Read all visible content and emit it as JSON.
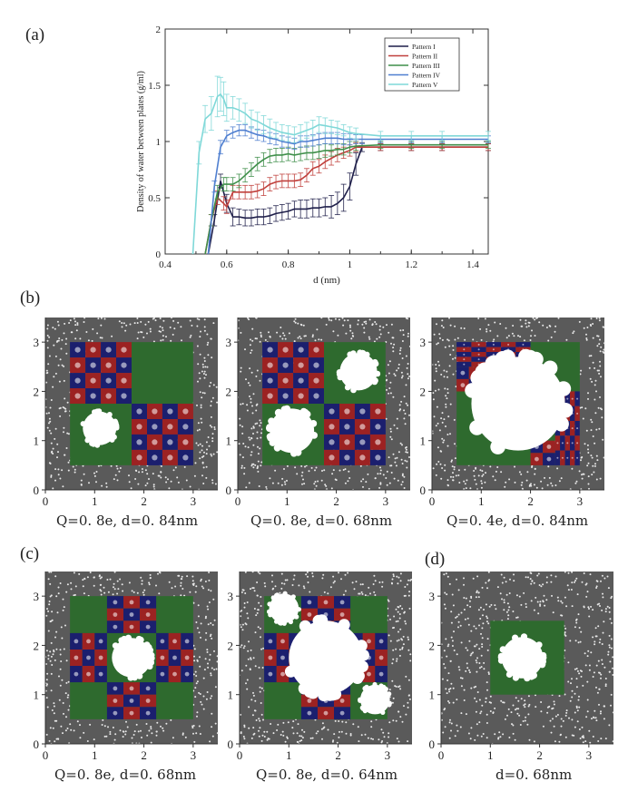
{
  "panel_labels": [
    "(a)",
    "(b)",
    "(c)",
    "(d)"
  ],
  "colors": {
    "pattern1": "#1f1f4a",
    "pattern2": "#c0403c",
    "pattern3": "#3f8f4a",
    "pattern4": "#4f7fd0",
    "pattern5": "#7fd8d8",
    "negative": "#1b1f6e",
    "positive": "#9c2222",
    "neutral": "#2e6a2e",
    "water_bg": "#5a5a5a",
    "water_dot": "#e8e8e8"
  },
  "chart_data": [
    {
      "type": "line",
      "ylabel": "Density of water between plates (g/ml)",
      "xlabel": "d (nm)",
      "xlim": [
        0.4,
        1.45
      ],
      "ylim": [
        0,
        2
      ],
      "xticks": [
        "0.4",
        "0.6",
        "0.8",
        "1",
        "1.2",
        "1.4"
      ],
      "xtick_values": [
        0.4,
        0.6,
        0.8,
        1.0,
        1.2,
        1.4
      ],
      "yticks": [
        "0",
        "0.5",
        "1",
        "1.5",
        "2"
      ],
      "ytick_values": [
        0,
        0.5,
        1.0,
        1.5,
        2.0
      ],
      "legend_position": "top-right",
      "series": [
        {
          "name": "Pattern I",
          "color_key": "pattern1",
          "x": [
            0.54,
            0.56,
            0.58,
            0.6,
            0.62,
            0.64,
            0.66,
            0.68,
            0.7,
            0.72,
            0.74,
            0.76,
            0.78,
            0.8,
            0.82,
            0.84,
            0.86,
            0.88,
            0.9,
            0.92,
            0.94,
            0.96,
            0.98,
            1.0,
            1.02,
            1.04,
            1.1,
            1.2,
            1.3,
            1.45
          ],
          "y": [
            0.0,
            0.3,
            0.65,
            0.45,
            0.33,
            0.33,
            0.32,
            0.32,
            0.33,
            0.33,
            0.34,
            0.36,
            0.37,
            0.38,
            0.4,
            0.4,
            0.4,
            0.41,
            0.41,
            0.42,
            0.42,
            0.45,
            0.5,
            0.6,
            0.8,
            0.95,
            0.95,
            0.95,
            0.95,
            0.95
          ],
          "err": [
            0,
            0.05,
            0.06,
            0.08,
            0.08,
            0.07,
            0.07,
            0.07,
            0.07,
            0.07,
            0.07,
            0.07,
            0.07,
            0.07,
            0.07,
            0.08,
            0.08,
            0.08,
            0.08,
            0.08,
            0.1,
            0.1,
            0.12,
            0.12,
            0.1,
            0.04,
            0.03,
            0.03,
            0.03,
            0.03
          ]
        },
        {
          "name": "Pattern II",
          "color_key": "pattern2",
          "x": [
            0.53,
            0.55,
            0.57,
            0.59,
            0.6,
            0.62,
            0.64,
            0.66,
            0.68,
            0.7,
            0.72,
            0.74,
            0.76,
            0.78,
            0.8,
            0.82,
            0.84,
            0.86,
            0.88,
            0.9,
            0.92,
            0.94,
            0.96,
            0.98,
            1.0,
            1.02,
            1.1,
            1.2,
            1.3,
            1.45
          ],
          "y": [
            0.0,
            0.3,
            0.5,
            0.45,
            0.42,
            0.55,
            0.55,
            0.55,
            0.55,
            0.56,
            0.58,
            0.62,
            0.64,
            0.65,
            0.65,
            0.65,
            0.66,
            0.7,
            0.76,
            0.78,
            0.82,
            0.85,
            0.88,
            0.9,
            0.92,
            0.95,
            0.95,
            0.95,
            0.95,
            0.95
          ],
          "err": [
            0,
            0.05,
            0.06,
            0.06,
            0.06,
            0.06,
            0.06,
            0.06,
            0.06,
            0.06,
            0.06,
            0.06,
            0.06,
            0.06,
            0.06,
            0.06,
            0.06,
            0.06,
            0.06,
            0.06,
            0.06,
            0.06,
            0.06,
            0.05,
            0.05,
            0.04,
            0.03,
            0.03,
            0.03,
            0.03
          ]
        },
        {
          "name": "Pattern III",
          "color_key": "pattern3",
          "x": [
            0.53,
            0.55,
            0.57,
            0.59,
            0.6,
            0.62,
            0.64,
            0.66,
            0.68,
            0.7,
            0.72,
            0.74,
            0.76,
            0.78,
            0.8,
            0.82,
            0.84,
            0.86,
            0.88,
            0.9,
            0.92,
            0.94,
            0.96,
            0.98,
            1.0,
            1.02,
            1.1,
            1.2,
            1.3,
            1.45
          ],
          "y": [
            0.0,
            0.3,
            0.55,
            0.62,
            0.62,
            0.62,
            0.65,
            0.7,
            0.75,
            0.8,
            0.84,
            0.87,
            0.88,
            0.88,
            0.89,
            0.88,
            0.89,
            0.9,
            0.9,
            0.91,
            0.92,
            0.92,
            0.93,
            0.93,
            0.95,
            0.96,
            0.97,
            0.97,
            0.97,
            0.97
          ],
          "err": [
            0,
            0.05,
            0.06,
            0.06,
            0.06,
            0.06,
            0.06,
            0.06,
            0.06,
            0.06,
            0.06,
            0.06,
            0.06,
            0.06,
            0.06,
            0.06,
            0.06,
            0.06,
            0.06,
            0.06,
            0.06,
            0.05,
            0.05,
            0.05,
            0.05,
            0.04,
            0.03,
            0.03,
            0.03,
            0.03
          ]
        },
        {
          "name": "Pattern IV",
          "color_key": "pattern4",
          "x": [
            0.54,
            0.56,
            0.58,
            0.6,
            0.62,
            0.64,
            0.66,
            0.68,
            0.7,
            0.72,
            0.74,
            0.76,
            0.78,
            0.8,
            0.82,
            0.84,
            0.86,
            0.88,
            0.9,
            0.92,
            0.94,
            0.96,
            0.98,
            1.0,
            1.02,
            1.04,
            1.1,
            1.2,
            1.3,
            1.45
          ],
          "y": [
            0.0,
            0.6,
            0.95,
            1.05,
            1.08,
            1.1,
            1.1,
            1.08,
            1.06,
            1.05,
            1.03,
            1.02,
            1.0,
            0.99,
            0.98,
            1.0,
            1.0,
            1.01,
            1.02,
            1.03,
            1.03,
            1.03,
            1.02,
            1.02,
            1.02,
            1.02,
            1.02,
            1.02,
            1.02,
            1.02
          ],
          "err": [
            0,
            0.05,
            0.06,
            0.05,
            0.05,
            0.05,
            0.05,
            0.05,
            0.05,
            0.05,
            0.05,
            0.05,
            0.05,
            0.05,
            0.05,
            0.05,
            0.05,
            0.05,
            0.05,
            0.05,
            0.05,
            0.05,
            0.05,
            0.05,
            0.04,
            0.04,
            0.03,
            0.03,
            0.03,
            0.03
          ]
        },
        {
          "name": "Pattern V",
          "color_key": "pattern5",
          "x": [
            0.49,
            0.51,
            0.53,
            0.55,
            0.57,
            0.58,
            0.59,
            0.6,
            0.62,
            0.64,
            0.66,
            0.68,
            0.7,
            0.72,
            0.74,
            0.76,
            0.78,
            0.8,
            0.82,
            0.84,
            0.86,
            0.88,
            0.9,
            0.92,
            0.94,
            0.96,
            0.98,
            1.0,
            1.02,
            1.1,
            1.2,
            1.3,
            1.45
          ],
          "y": [
            0.0,
            0.9,
            1.2,
            1.25,
            1.4,
            1.42,
            1.38,
            1.3,
            1.3,
            1.28,
            1.25,
            1.2,
            1.18,
            1.15,
            1.12,
            1.1,
            1.08,
            1.07,
            1.06,
            1.08,
            1.1,
            1.12,
            1.15,
            1.14,
            1.13,
            1.12,
            1.1,
            1.08,
            1.07,
            1.05,
            1.05,
            1.05,
            1.05
          ],
          "err": [
            0,
            0.1,
            0.12,
            0.15,
            0.18,
            0.15,
            0.15,
            0.12,
            0.1,
            0.1,
            0.09,
            0.08,
            0.08,
            0.08,
            0.08,
            0.07,
            0.07,
            0.07,
            0.07,
            0.07,
            0.07,
            0.07,
            0.07,
            0.07,
            0.06,
            0.06,
            0.05,
            0.05,
            0.05,
            0.04,
            0.04,
            0.04,
            0.04
          ]
        }
      ]
    },
    {
      "type": "scatter",
      "panel": "(b)",
      "caption": "Q=0. 8e,  d=0. 84nm",
      "xticks": [
        "0",
        "1",
        "2",
        "3"
      ],
      "yticks": [
        "0",
        "1",
        "2",
        "3"
      ],
      "xlim": [
        0,
        3.5
      ],
      "ylim": [
        0,
        3.5
      ],
      "plate": [
        0.5,
        0.5,
        3.0,
        3.0
      ],
      "tiles": [
        {
          "region": [
            0.5,
            1.75,
            1.75,
            3.0
          ],
          "kind": "checker",
          "n": 4
        },
        {
          "region": [
            1.75,
            0.5,
            3.0,
            1.75
          ],
          "kind": "checker",
          "n": 4
        },
        {
          "region": [
            1.75,
            1.75,
            3.0,
            3.0
          ],
          "kind": "neutral"
        },
        {
          "region": [
            0.5,
            0.5,
            1.75,
            1.75
          ],
          "kind": "neutral"
        }
      ],
      "voids": [
        {
          "cx": 1.1,
          "cy": 1.25,
          "r": 0.34
        }
      ]
    },
    {
      "type": "scatter",
      "panel": "(b)",
      "caption": "Q=0. 8e,  d=0. 68nm",
      "xticks": [
        "0",
        "1",
        "2",
        "3"
      ],
      "yticks": [
        "0",
        "1",
        "2",
        "3"
      ],
      "xlim": [
        0,
        3.5
      ],
      "ylim": [
        0,
        3.5
      ],
      "plate": [
        0.5,
        0.5,
        3.0,
        3.0
      ],
      "tiles": [
        {
          "region": [
            0.5,
            1.75,
            1.75,
            3.0
          ],
          "kind": "checker",
          "n": 4
        },
        {
          "region": [
            1.75,
            0.5,
            3.0,
            1.75
          ],
          "kind": "checker",
          "n": 4
        },
        {
          "region": [
            1.75,
            1.75,
            3.0,
            3.0
          ],
          "kind": "neutral"
        },
        {
          "region": [
            0.5,
            0.5,
            1.75,
            1.75
          ],
          "kind": "neutral"
        }
      ],
      "voids": [
        {
          "cx": 1.1,
          "cy": 1.2,
          "r": 0.45
        },
        {
          "cx": 2.45,
          "cy": 2.4,
          "r": 0.38
        }
      ]
    },
    {
      "type": "scatter",
      "panel": "(b)",
      "caption": "Q=0. 4e,  d=0. 84nm",
      "xticks": [
        "0",
        "1",
        "2",
        "3"
      ],
      "yticks": [
        "0",
        "1",
        "2",
        "3"
      ],
      "xlim": [
        0,
        3.5
      ],
      "ylim": [
        0,
        3.5
      ],
      "plate": [
        0.5,
        0.5,
        3.0,
        3.0
      ],
      "tiles": [
        {
          "region": [
            0.5,
            2.5,
            2.0,
            3.0
          ],
          "kind": "checker",
          "n": 5
        },
        {
          "region": [
            0.5,
            2.0,
            1.0,
            2.5
          ],
          "kind": "checker",
          "n": 2
        },
        {
          "region": [
            2.5,
            0.5,
            3.0,
            2.0
          ],
          "kind": "checker",
          "n": 5
        },
        {
          "region": [
            2.0,
            0.5,
            2.5,
            1.0
          ],
          "kind": "checker",
          "n": 2
        },
        {
          "region": [
            0.5,
            0.5,
            2.5,
            2.5
          ],
          "kind": "neutral"
        },
        {
          "region": [
            2.0,
            2.0,
            3.0,
            3.0
          ],
          "kind": "neutral"
        }
      ],
      "voids": [
        {
          "cx": 1.75,
          "cy": 1.75,
          "r": 0.95
        }
      ]
    },
    {
      "type": "scatter",
      "panel": "(c)",
      "caption": "Q=0. 8e,  d=0. 68nm",
      "xticks": [
        "0",
        "1",
        "2",
        "3"
      ],
      "yticks": [
        "0",
        "1",
        "2",
        "3"
      ],
      "xlim": [
        0,
        3.5
      ],
      "ylim": [
        0,
        3.5
      ],
      "plate": [
        0.5,
        0.5,
        3.0,
        3.0
      ],
      "tiles": [
        {
          "region": [
            0.5,
            0.5,
            3.0,
            3.0
          ],
          "kind": "neutral"
        },
        {
          "region": [
            1.25,
            2.25,
            2.25,
            3.0
          ],
          "kind": "checker",
          "n": 3
        },
        {
          "region": [
            1.25,
            0.5,
            2.25,
            1.25
          ],
          "kind": "checker",
          "n": 3
        },
        {
          "region": [
            0.5,
            1.25,
            1.25,
            2.25
          ],
          "kind": "checker",
          "n": 3
        },
        {
          "region": [
            2.25,
            1.25,
            3.0,
            2.25
          ],
          "kind": "checker",
          "n": 3
        }
      ],
      "voids": [
        {
          "cx": 1.75,
          "cy": 1.75,
          "r": 0.4
        }
      ]
    },
    {
      "type": "scatter",
      "panel": "(c)",
      "caption": "Q=0. 8e,  d=0. 64nm",
      "xticks": [
        "0",
        "1",
        "2",
        "3"
      ],
      "yticks": [
        "0",
        "1",
        "2",
        "3"
      ],
      "xlim": [
        0,
        3.5
      ],
      "ylim": [
        0,
        3.5
      ],
      "plate": [
        0.5,
        0.5,
        3.0,
        3.0
      ],
      "tiles": [
        {
          "region": [
            0.5,
            0.5,
            3.0,
            3.0
          ],
          "kind": "neutral"
        },
        {
          "region": [
            1.25,
            2.25,
            2.25,
            3.0
          ],
          "kind": "checker",
          "n": 3
        },
        {
          "region": [
            1.25,
            0.5,
            2.25,
            1.25
          ],
          "kind": "checker",
          "n": 3
        },
        {
          "region": [
            0.5,
            1.25,
            1.25,
            2.25
          ],
          "kind": "checker",
          "n": 3
        },
        {
          "region": [
            2.25,
            1.25,
            3.0,
            2.25
          ],
          "kind": "checker",
          "n": 3
        }
      ],
      "voids": [
        {
          "cx": 1.75,
          "cy": 1.75,
          "r": 0.75
        },
        {
          "cx": 0.9,
          "cy": 2.75,
          "r": 0.3
        },
        {
          "cx": 2.75,
          "cy": 0.9,
          "r": 0.3
        }
      ]
    },
    {
      "type": "scatter",
      "panel": "(d)",
      "caption": "d=0. 68nm",
      "xticks": [
        "0",
        "1",
        "2",
        "3"
      ],
      "yticks": [
        "0",
        "1",
        "2",
        "3"
      ],
      "xlim": [
        0,
        3.5
      ],
      "ylim": [
        0,
        3.5
      ],
      "plate": [
        1.0,
        1.0,
        2.5,
        2.5
      ],
      "tiles": [
        {
          "region": [
            1.0,
            1.0,
            2.5,
            2.5
          ],
          "kind": "neutral"
        }
      ],
      "voids": [
        {
          "cx": 1.65,
          "cy": 1.75,
          "r": 0.42
        }
      ]
    }
  ]
}
